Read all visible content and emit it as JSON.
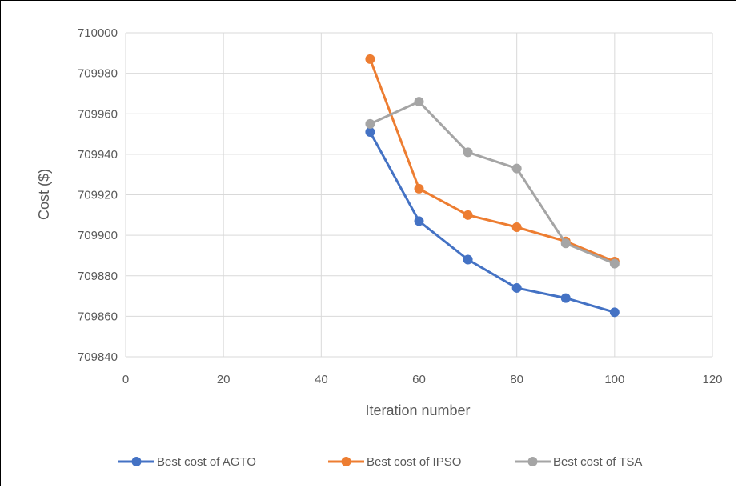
{
  "chart_data": {
    "type": "scatter",
    "title": "",
    "xlabel": "Iteration number",
    "ylabel": "Cost ($)",
    "xlim": [
      0,
      120
    ],
    "ylim": [
      709840,
      710000
    ],
    "x_ticks": [
      "0",
      "20",
      "40",
      "60",
      "80",
      "100",
      "120"
    ],
    "y_ticks": [
      "709840",
      "709860",
      "709880",
      "709900",
      "709920",
      "709940",
      "709960",
      "709980",
      "710000"
    ],
    "grid": true,
    "legend_position": "bottom",
    "lines_with_markers": true,
    "series": [
      {
        "name": "Best cost of AGTO",
        "color": "#4472C4",
        "x": [
          50,
          60,
          70,
          80,
          90,
          100
        ],
        "y": [
          709951,
          709907,
          709888,
          709874,
          709869,
          709862
        ]
      },
      {
        "name": "Best cost of IPSO",
        "color": "#ED7D31",
        "x": [
          50,
          60,
          70,
          80,
          90,
          100
        ],
        "y": [
          709987,
          709923,
          709910,
          709904,
          709897,
          709887
        ]
      },
      {
        "name": "Best cost of TSA",
        "color": "#A5A5A5",
        "x": [
          50,
          60,
          70,
          80,
          90,
          100
        ],
        "y": [
          709955,
          709966,
          709941,
          709933,
          709896,
          709886
        ]
      }
    ]
  }
}
